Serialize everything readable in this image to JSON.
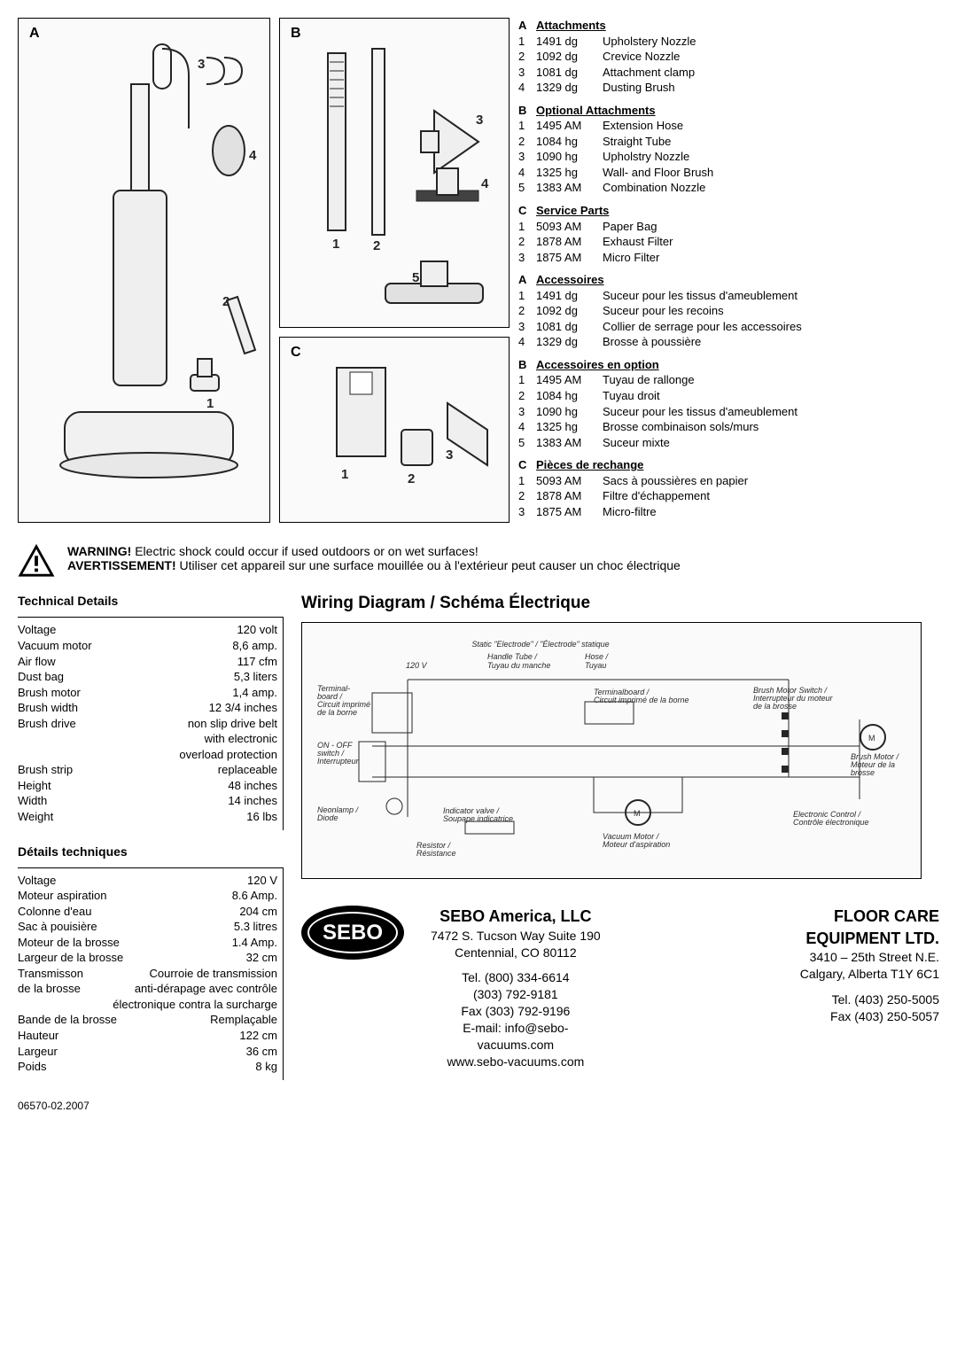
{
  "labels": {
    "A": "A",
    "B": "B",
    "C": "C"
  },
  "callouts_a": [
    "1",
    "2",
    "3",
    "4"
  ],
  "callouts_b": [
    "1",
    "2",
    "3",
    "4",
    "5"
  ],
  "callouts_c": [
    "1",
    "2",
    "3"
  ],
  "parts": {
    "A": {
      "title": "Attachments",
      "rows": [
        {
          "n": "1",
          "c": "1491 dg",
          "d": "Upholstery Nozzle"
        },
        {
          "n": "2",
          "c": "1092 dg",
          "d": "Crevice Nozzle"
        },
        {
          "n": "3",
          "c": "1081 dg",
          "d": "Attachment clamp"
        },
        {
          "n": "4",
          "c": "1329 dg",
          "d": "Dusting Brush"
        }
      ]
    },
    "B": {
      "title": "Optional Attachments",
      "rows": [
        {
          "n": "1",
          "c": "1495 AM",
          "d": "Extension Hose"
        },
        {
          "n": "2",
          "c": "1084 hg",
          "d": "Straight Tube"
        },
        {
          "n": "3",
          "c": "1090 hg",
          "d": "Upholstry Nozzle"
        },
        {
          "n": "4",
          "c": "1325 hg",
          "d": "Wall- and Floor Brush"
        },
        {
          "n": "5",
          "c": "1383 AM",
          "d": "Combination Nozzle"
        }
      ]
    },
    "C": {
      "title": "Service Parts",
      "rows": [
        {
          "n": "1",
          "c": "5093 AM",
          "d": "Paper Bag"
        },
        {
          "n": "2",
          "c": "1878 AM",
          "d": "Exhaust Filter"
        },
        {
          "n": "3",
          "c": "1875 AM",
          "d": "Micro Filter"
        }
      ]
    },
    "A2": {
      "title": "Accessoires",
      "rows": [
        {
          "n": "1",
          "c": "1491 dg",
          "d": "Suceur pour les tissus d'ameublement"
        },
        {
          "n": "2",
          "c": "1092 dg",
          "d": "Suceur pour les recoins"
        },
        {
          "n": "3",
          "c": "1081 dg",
          "d": "Collier de serrage pour les accessoires"
        },
        {
          "n": "4",
          "c": "1329 dg",
          "d": "Brosse à poussière"
        }
      ]
    },
    "B2": {
      "title": "Accessoires en option",
      "rows": [
        {
          "n": "1",
          "c": "1495 AM",
          "d": "Tuyau de rallonge"
        },
        {
          "n": "2",
          "c": "1084 hg",
          "d": "Tuyau droit"
        },
        {
          "n": "3",
          "c": "1090 hg",
          "d": "Suceur pour les tissus d'ameublement"
        },
        {
          "n": "4",
          "c": "1325 hg",
          "d": "Brosse combinaison sols/murs"
        },
        {
          "n": "5",
          "c": "1383 AM",
          "d": "Suceur mixte"
        }
      ]
    },
    "C2": {
      "title": "Pièces de rechange",
      "rows": [
        {
          "n": "1",
          "c": "5093 AM",
          "d": "Sacs à poussières en papier"
        },
        {
          "n": "2",
          "c": "1878 AM",
          "d": "Filtre d'échappement"
        },
        {
          "n": "3",
          "c": "1875 AM",
          "d": "Micro-filtre"
        }
      ]
    }
  },
  "warning": {
    "en_bold": "WARNING!",
    "en": " Electric shock could occur if used outdoors or on wet surfaces!",
    "fr_bold": "AVERTISSEMENT!",
    "fr": " Utiliser cet appareil sur une surface mouillée ou à l'extérieur peut causer un choc électrique"
  },
  "tech_en": {
    "title": "Technical Details",
    "rows": [
      {
        "l": "Voltage",
        "r": "120 volt"
      },
      {
        "l": "Vacuum motor",
        "r": "8,6 amp."
      },
      {
        "l": "Air flow",
        "r": "117 cfm"
      },
      {
        "l": "Dust bag",
        "r": "5,3 liters"
      },
      {
        "l": "Brush motor",
        "r": "1,4 amp."
      },
      {
        "l": "Brush width",
        "r": "12 3/4 inches"
      },
      {
        "l": "Brush drive",
        "r": "non slip drive belt"
      },
      {
        "l": "",
        "r": "with electronic"
      },
      {
        "l": "",
        "r": "overload protection"
      },
      {
        "l": "Brush strip",
        "r": "replaceable"
      },
      {
        "l": "Height",
        "r": "48 inches"
      },
      {
        "l": "Width",
        "r": "14 inches"
      },
      {
        "l": "Weight",
        "r": "16 lbs"
      }
    ]
  },
  "tech_fr": {
    "title": "Détails techniques",
    "rows": [
      {
        "l": "Voltage",
        "r": "120 V"
      },
      {
        "l": "Moteur aspiration",
        "r": "8.6 Amp."
      },
      {
        "l": "Colonne d'eau",
        "r": "204 cm"
      },
      {
        "l": "Sac à pouisière",
        "r": "5.3 litres"
      },
      {
        "l": "Moteur de la brosse",
        "r": "1.4 Amp."
      },
      {
        "l": "Largeur de la brosse",
        "r": "32 cm"
      },
      {
        "l": "Transmisson",
        "r": "Courroie de transmission"
      },
      {
        "l": "de la brosse",
        "r": "anti-dérapage avec contrôle"
      },
      {
        "l": "",
        "r": "électronique contra la surcharge"
      },
      {
        "l": "Bande de la brosse",
        "r": "Remplaçable"
      },
      {
        "l": "Hauteur",
        "r": "122 cm"
      },
      {
        "l": "Largeur",
        "r": "36 cm"
      },
      {
        "l": "Poids",
        "r": "8 kg"
      }
    ]
  },
  "wiring": {
    "title": "Wiring Diagram / Schéma Électrique",
    "labels": {
      "static": "Static \"Electrode\" / \"Électrode\" statique",
      "v120": "120 V",
      "handle": "Handle Tube /\nTuyau du manche",
      "hose": "Hose /\nTuyau",
      "terminal": "Terminal-\nboard /\nCircuit imprimé\nde la borne",
      "terminal2": "Terminalboard /\nCircuit imprimé de la borne",
      "onoff": "ON - OFF\nswitch /\nInterrupteur",
      "neon": "Neonlamp /\nDiode",
      "indicator": "Indicator valve /\nSoupape indicatrice",
      "resistor": "Resistor /\nRésistance",
      "vacmotor": "Vacuum Motor /\nMoteur d'aspiration",
      "brushswitch": "Brush Motor Switch /\nInterrupteur du moteur\nde la brosse",
      "brushmotor": "Brush Motor /\nMoteur de la\nbrosse",
      "electronic": "Electronic Control /\nContrôle électronique"
    }
  },
  "brand": "SEBO",
  "contact1": {
    "name": "SEBO America, LLC",
    "addr1": "7472 S. Tucson Way Suite 190",
    "addr2": "Centennial, CO 80112",
    "tel1": "Tel.  (800) 334-6614",
    "tel2": "(303) 792-9181",
    "fax": "Fax (303) 792-9196",
    "email": "E-mail: info@sebo-",
    "email2": "vacuums.com",
    "web": "www.sebo-vacuums.com"
  },
  "contact2": {
    "name": "FLOOR CARE",
    "name2": "EQUIPMENT LTD.",
    "addr1": "3410 – 25th Street N.E.",
    "addr2": "Calgary, Alberta T1Y 6C1",
    "tel": "Tel.  (403) 250-5005",
    "fax": "Fax  (403) 250-5057"
  },
  "docnum": "06570-02.2007"
}
